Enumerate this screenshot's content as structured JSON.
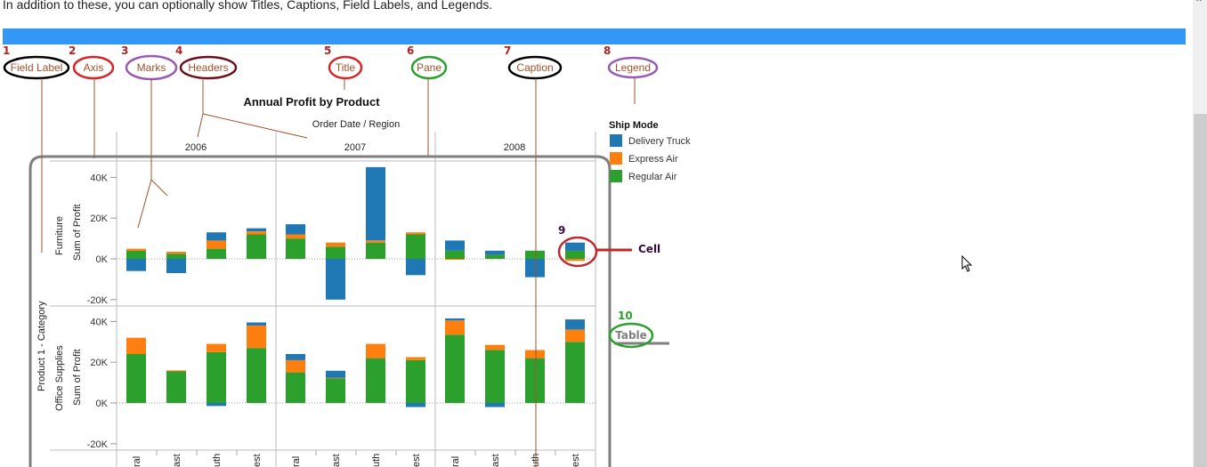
{
  "page": {
    "intro_text": "In addition to these, you can optionally show Titles, Captions, Field Labels, and Legends."
  },
  "callouts": [
    {
      "num": "1",
      "label": "Field Label",
      "color": "#000000"
    },
    {
      "num": "2",
      "label": "Axis",
      "color": "#d62728"
    },
    {
      "num": "3",
      "label": "Marks",
      "color": "#9b59b6"
    },
    {
      "num": "4",
      "label": "Headers",
      "color": "#6b0f1a"
    },
    {
      "num": "5",
      "label": "Title",
      "color": "#d62728"
    },
    {
      "num": "6",
      "label": "Pane",
      "color": "#2ca02c"
    },
    {
      "num": "7",
      "label": "Caption",
      "color": "#000000"
    },
    {
      "num": "8",
      "label": "Legend",
      "color": "#9b59b6"
    },
    {
      "num": "9",
      "label": "Cell",
      "color": "#d62728"
    },
    {
      "num": "10",
      "label": "Table",
      "color": "#2ca02c"
    }
  ],
  "colors": {
    "delivery_truck": "#1f77b4",
    "express_air": "#ff7f0e",
    "regular_air": "#2ca02c",
    "accent_bar": "#3398f5"
  },
  "chart_data": {
    "type": "bar",
    "stacked": true,
    "title": "Annual Profit by Product",
    "column_field_label": "Order Date  /  Region",
    "row_field_label": "Product 1 - Category",
    "ylabel": "Sum of Profit",
    "yticks": [
      "40K",
      "20K",
      "0K",
      "-20K"
    ],
    "ylim": [
      -20000,
      45000
    ],
    "years": [
      "2006",
      "2007",
      "2008"
    ],
    "regions": [
      "Central",
      "East",
      "South",
      "West"
    ],
    "region_labels_visible": [
      "ral",
      "ast",
      "uth",
      "est"
    ],
    "legend": {
      "title": "Ship Mode",
      "position": "right",
      "entries": [
        "Delivery Truck",
        "Express Air",
        "Regular Air"
      ]
    },
    "rows": [
      {
        "category": "Furniture",
        "series": [
          {
            "name": "Delivery Truck",
            "values": [
              -6000,
              -7000,
              4000,
              1500,
              5000,
              -20000,
              36000,
              -8000,
              5000,
              2000,
              -9000,
              4000
            ]
          },
          {
            "name": "Express Air",
            "values": [
              1000,
              1000,
              4000,
              1500,
              2000,
              2000,
              1000,
              1000,
              -500,
              0,
              0,
              -1000
            ]
          },
          {
            "name": "Regular Air",
            "values": [
              4000,
              2500,
              5000,
              12000,
              10000,
              6000,
              8000,
              12000,
              4000,
              2000,
              4000,
              4000
            ]
          }
        ]
      },
      {
        "category": "Office Supplies",
        "series": [
          {
            "name": "Delivery Truck",
            "values": [
              0,
              0,
              -1500,
              1500,
              3000,
              3500,
              0,
              -2000,
              1000,
              -2000,
              0,
              5000
            ]
          },
          {
            "name": "Express Air",
            "values": [
              8000,
              500,
              4000,
              11000,
              6000,
              300,
              7000,
              1500,
              7000,
              2500,
              4000,
              6000
            ]
          },
          {
            "name": "Regular Air",
            "values": [
              24000,
              15500,
              25000,
              27000,
              15000,
              12000,
              22000,
              21000,
              33500,
              26000,
              22000,
              30000
            ]
          }
        ]
      }
    ]
  }
}
